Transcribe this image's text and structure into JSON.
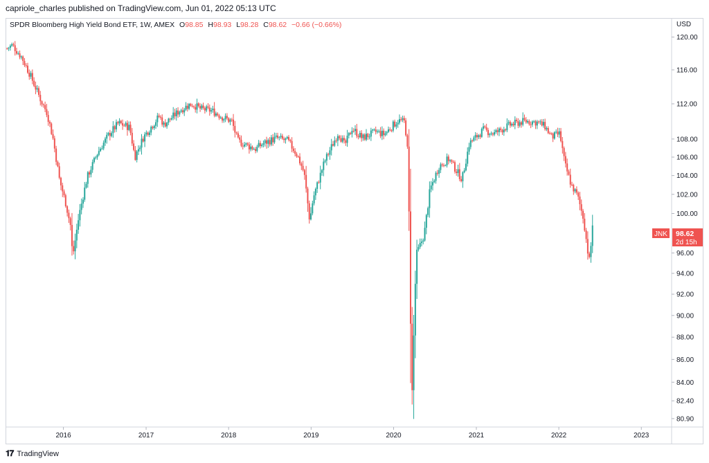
{
  "header": {
    "published": "capriole_charles published on TradingView.com, Jun 01, 2022 05:13 UTC"
  },
  "legend": {
    "name": "SPDR Bloomberg High Yield Bond ETF, 1W, AMEX",
    "o_label": "O",
    "o_value": "98.85",
    "h_label": "H",
    "h_value": "98.93",
    "l_label": "L",
    "l_value": "98.28",
    "c_label": "C",
    "c_value": "98.62",
    "change": "−0.66 (−0.66%)"
  },
  "price_tag": {
    "symbol": "JNK",
    "price": "98.62",
    "countdown": "2d 15h"
  },
  "footer": {
    "brand": "TradingView",
    "logo": "tradingview-logo-icon"
  },
  "colors": {
    "up": "#26a69a",
    "down": "#ef5350",
    "axis_line": "#d1d4dc"
  },
  "chart_data": {
    "type": "candlestick",
    "title": "",
    "ylabel": "USD",
    "scale": "log",
    "ylim": [
      80.2,
      122.3
    ],
    "yticks": [
      "120.00",
      "116.00",
      "112.00",
      "108.00",
      "106.00",
      "104.00",
      "102.00",
      "100.00",
      "96.00",
      "94.00",
      "92.00",
      "90.00",
      "88.00",
      "86.00",
      "84.00",
      "82.40",
      "80.90"
    ],
    "xticks": [
      "2016",
      "2017",
      "2018",
      "2019",
      "2020",
      "2021",
      "2022",
      "2023"
    ],
    "xlim": [
      "2015-04-20",
      "2023-05-15"
    ],
    "grid": false,
    "series": [
      {
        "name": "JNK",
        "timeframe": "1W",
        "path": [
          [
            "2015-04-27",
            118.6
          ],
          [
            "2015-05-20",
            119.0
          ],
          [
            "2015-07-01",
            117.5
          ],
          [
            "2015-08-10",
            115.2
          ],
          [
            "2015-09-25",
            112.3
          ],
          [
            "2015-10-20",
            111.0
          ],
          [
            "2015-11-15",
            108.2
          ],
          [
            "2015-12-15",
            103.5
          ],
          [
            "2016-01-10",
            101.2
          ],
          [
            "2016-02-01",
            98.8
          ],
          [
            "2016-02-11",
            95.6
          ],
          [
            "2016-03-10",
            99.8
          ],
          [
            "2016-04-15",
            103.8
          ],
          [
            "2016-06-01",
            106.5
          ],
          [
            "2016-07-20",
            108.5
          ],
          [
            "2016-09-01",
            109.8
          ],
          [
            "2016-10-20",
            109.3
          ],
          [
            "2016-11-12",
            106.0
          ],
          [
            "2016-12-20",
            108.2
          ],
          [
            "2017-03-01",
            110.6
          ],
          [
            "2017-03-20",
            109.6
          ],
          [
            "2017-06-01",
            111.3
          ],
          [
            "2017-07-20",
            112.0
          ],
          [
            "2017-09-01",
            111.4
          ],
          [
            "2017-10-20",
            111.2
          ],
          [
            "2017-12-01",
            110.5
          ],
          [
            "2018-01-15",
            110.0
          ],
          [
            "2018-02-10",
            107.8
          ],
          [
            "2018-03-20",
            107.3
          ],
          [
            "2018-05-01",
            106.9
          ],
          [
            "2018-06-01",
            107.5
          ],
          [
            "2018-08-01",
            108.1
          ],
          [
            "2018-09-20",
            107.8
          ],
          [
            "2018-11-01",
            106.2
          ],
          [
            "2018-12-01",
            104.3
          ],
          [
            "2018-12-26",
            99.2
          ],
          [
            "2019-01-10",
            101.6
          ],
          [
            "2019-03-01",
            105.5
          ],
          [
            "2019-05-01",
            108.7
          ],
          [
            "2019-05-30",
            107.3
          ],
          [
            "2019-07-01",
            109.2
          ],
          [
            "2019-08-15",
            108.1
          ],
          [
            "2019-10-15",
            108.8
          ],
          [
            "2019-11-20",
            108.5
          ],
          [
            "2020-01-20",
            110.1
          ],
          [
            "2020-02-20",
            109.9
          ],
          [
            "2020-03-05",
            106.0
          ],
          [
            "2020-03-18",
            86.5
          ],
          [
            "2020-03-23",
            83.2
          ],
          [
            "2020-04-10",
            95.8
          ],
          [
            "2020-05-15",
            97.8
          ],
          [
            "2020-06-10",
            102.5
          ],
          [
            "2020-07-20",
            105.0
          ],
          [
            "2020-09-01",
            105.8
          ],
          [
            "2020-10-30",
            103.6
          ],
          [
            "2020-12-01",
            107.5
          ],
          [
            "2021-02-01",
            109.0
          ],
          [
            "2021-03-20",
            108.6
          ],
          [
            "2021-06-01",
            109.6
          ],
          [
            "2021-08-01",
            110.0
          ],
          [
            "2021-09-25",
            109.9
          ],
          [
            "2021-11-01",
            109.4
          ],
          [
            "2021-11-30",
            108.2
          ],
          [
            "2022-01-05",
            108.6
          ],
          [
            "2022-01-28",
            105.2
          ],
          [
            "2022-02-25",
            103.0
          ],
          [
            "2022-03-25",
            101.8
          ],
          [
            "2022-04-20",
            99.5
          ],
          [
            "2022-05-10",
            96.0
          ],
          [
            "2022-05-20",
            94.8
          ],
          [
            "2022-05-27",
            99.28
          ],
          [
            "2022-06-01",
            98.62
          ]
        ]
      }
    ]
  }
}
